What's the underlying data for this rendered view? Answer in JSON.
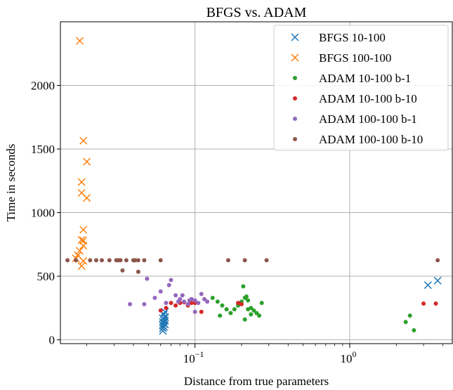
{
  "chart_data": {
    "type": "scatter",
    "title": "BFGS vs. ADAM",
    "xlabel": "Distance from true parameters",
    "ylabel": "Time in seconds",
    "xscale": "log",
    "xlim": [
      0.0135,
      4.6
    ],
    "ylim": [
      -30,
      2500
    ],
    "xticks": [
      {
        "value": 0.1,
        "base": "10",
        "exp": "−1"
      },
      {
        "value": 1,
        "base": "10",
        "exp": "0"
      }
    ],
    "yticks": [
      0,
      500,
      1000,
      1500,
      2000
    ],
    "grid": true,
    "legend_position": "top-right",
    "series": [
      {
        "name": "BFGS 10-100",
        "marker": "x",
        "color": "#1f77b4",
        "points": [
          [
            0.062,
            70
          ],
          [
            0.062,
            90
          ],
          [
            0.063,
            100
          ],
          [
            0.062,
            110
          ],
          [
            0.064,
            120
          ],
          [
            0.063,
            130
          ],
          [
            0.062,
            140
          ],
          [
            0.064,
            150
          ],
          [
            0.063,
            160
          ],
          [
            0.062,
            170
          ],
          [
            0.064,
            180
          ],
          [
            0.063,
            200
          ],
          [
            0.064,
            220
          ],
          [
            3.2,
            430
          ],
          [
            3.7,
            465
          ]
        ]
      },
      {
        "name": "BFGS 100-100",
        "marker": "x",
        "color": "#ff7f0e",
        "points": [
          [
            0.018,
            2350
          ],
          [
            0.019,
            1565
          ],
          [
            0.02,
            1400
          ],
          [
            0.0185,
            1240
          ],
          [
            0.0185,
            1155
          ],
          [
            0.02,
            1115
          ],
          [
            0.019,
            865
          ],
          [
            0.0185,
            785
          ],
          [
            0.019,
            780
          ],
          [
            0.019,
            740
          ],
          [
            0.018,
            700
          ],
          [
            0.0175,
            665
          ],
          [
            0.017,
            640
          ],
          [
            0.019,
            620
          ],
          [
            0.0185,
            580
          ]
        ]
      },
      {
        "name": "ADAM 10-100 b-1",
        "marker": "o",
        "color": "#2ca02c",
        "points": [
          [
            0.13,
            330
          ],
          [
            0.14,
            300
          ],
          [
            0.15,
            270
          ],
          [
            0.16,
            240
          ],
          [
            0.145,
            190
          ],
          [
            0.17,
            210
          ],
          [
            0.18,
            240
          ],
          [
            0.19,
            270
          ],
          [
            0.2,
            300
          ],
          [
            0.21,
            330
          ],
          [
            0.22,
            310
          ],
          [
            0.205,
            420
          ],
          [
            0.215,
            340
          ],
          [
            0.23,
            200
          ],
          [
            0.24,
            230
          ],
          [
            0.25,
            210
          ],
          [
            0.22,
            240
          ],
          [
            0.21,
            160
          ],
          [
            0.27,
            290
          ],
          [
            0.26,
            190
          ],
          [
            0.23,
            250
          ],
          [
            2.3,
            140
          ],
          [
            2.45,
            190
          ],
          [
            2.6,
            75
          ]
        ]
      },
      {
        "name": "ADAM 10-100 b-10",
        "marker": "o",
        "color": "#d62728",
        "points": [
          [
            0.06,
            230
          ],
          [
            0.065,
            250
          ],
          [
            0.07,
            290
          ],
          [
            0.075,
            270
          ],
          [
            0.08,
            290
          ],
          [
            0.085,
            295
          ],
          [
            0.09,
            270
          ],
          [
            0.095,
            290
          ],
          [
            0.1,
            290
          ],
          [
            0.11,
            220
          ],
          [
            0.19,
            290
          ],
          [
            0.2,
            280
          ],
          [
            3.0,
            285
          ],
          [
            3.6,
            285
          ]
        ]
      },
      {
        "name": "ADAM 100-100 b-1",
        "marker": "o",
        "color": "#9467bd",
        "points": [
          [
            0.038,
            280
          ],
          [
            0.047,
            280
          ],
          [
            0.049,
            480
          ],
          [
            0.055,
            330
          ],
          [
            0.06,
            380
          ],
          [
            0.065,
            290
          ],
          [
            0.068,
            430
          ],
          [
            0.07,
            470
          ],
          [
            0.075,
            350
          ],
          [
            0.08,
            320
          ],
          [
            0.085,
            300
          ],
          [
            0.09,
            280
          ],
          [
            0.095,
            320
          ],
          [
            0.1,
            310
          ],
          [
            0.105,
            290
          ],
          [
            0.11,
            360
          ],
          [
            0.115,
            320
          ],
          [
            0.12,
            300
          ],
          [
            0.1,
            220
          ],
          [
            0.083,
            350
          ],
          [
            0.078,
            300
          ],
          [
            0.092,
            310
          ]
        ]
      },
      {
        "name": "ADAM 100-100 b-10",
        "marker": "o",
        "color": "#8c564b",
        "points": [
          [
            0.015,
            625
          ],
          [
            0.017,
            625
          ],
          [
            0.021,
            625
          ],
          [
            0.023,
            625
          ],
          [
            0.025,
            625
          ],
          [
            0.028,
            625
          ],
          [
            0.031,
            625
          ],
          [
            0.032,
            625
          ],
          [
            0.033,
            625
          ],
          [
            0.036,
            625
          ],
          [
            0.04,
            625
          ],
          [
            0.041,
            625
          ],
          [
            0.043,
            625
          ],
          [
            0.047,
            625
          ],
          [
            0.06,
            625
          ],
          [
            0.034,
            545
          ],
          [
            0.043,
            535
          ],
          [
            0.164,
            625
          ],
          [
            0.21,
            625
          ],
          [
            0.29,
            625
          ],
          [
            3.7,
            625
          ]
        ]
      }
    ]
  }
}
